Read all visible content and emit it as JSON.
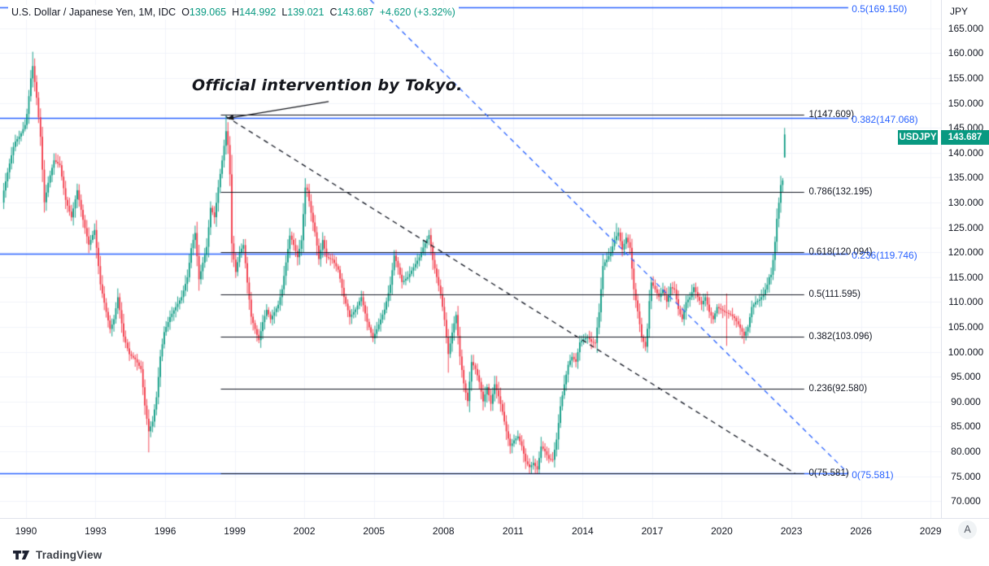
{
  "header": {
    "title": "U.S. Dollar / Japanese Yen, 1M, IDC",
    "o_label": "O",
    "o": "139.065",
    "h_label": "H",
    "h": "144.992",
    "l_label": "L",
    "l": "139.021",
    "c_label": "C",
    "c": "143.687",
    "change": "+4.620 (+3.32%)"
  },
  "annotation": {
    "text": "Official intervention by Tokyo."
  },
  "axis": {
    "currency": "JPY",
    "price_labels": [
      "165.000",
      "160.000",
      "155.000",
      "150.000",
      "145.000",
      "140.000",
      "135.000",
      "130.000",
      "125.000",
      "120.000",
      "115.000",
      "110.000",
      "105.000",
      "100.000",
      "95.000",
      "90.000",
      "85.000",
      "80.000",
      "75.000",
      "70.000"
    ],
    "year_labels": [
      "1990",
      "1993",
      "1996",
      "1999",
      "2002",
      "2005",
      "2008",
      "2011",
      "2014",
      "2017",
      "2020",
      "2023",
      "2026",
      "2029"
    ]
  },
  "badges": {
    "symbol": "USDJPY",
    "price": "143.687"
  },
  "footer": {
    "brand": "TradingView"
  },
  "corner": {
    "label": "A"
  },
  "colors": {
    "up": "#089981",
    "down": "#f23645",
    "blue": "#2962ff",
    "black_line": "#131722",
    "grid": "#f0f3fa",
    "axis_text": "#131722",
    "badge_bg": "#089981",
    "separator": "#e0e3eb"
  },
  "chart_data": {
    "type": "candlestick",
    "symbol": "USDJPY",
    "timeframe": "1M",
    "title": "U.S. Dollar / Japanese Yen, 1M, IDC",
    "grid": true,
    "xlim": [
      1988.88,
      2029.45
    ],
    "ylim": [
      66.6,
      170.7
    ],
    "x_ticks": [
      1990,
      1993,
      1996,
      1999,
      2002,
      2005,
      2008,
      2011,
      2014,
      2017,
      2020,
      2023,
      2026,
      2029
    ],
    "y_ticks": [
      165,
      160,
      155,
      150,
      145,
      140,
      135,
      130,
      125,
      120,
      115,
      110,
      105,
      100,
      95,
      90,
      85,
      80,
      75,
      70
    ],
    "last_bar": {
      "open": 139.065,
      "high": 144.992,
      "low": 139.021,
      "close": 143.687
    },
    "first_month": 1989.042,
    "months": 405,
    "price_path_anchors": [
      [
        1989.0,
        131.5
      ],
      [
        1989.25,
        137
      ],
      [
        1989.5,
        142
      ],
      [
        1989.75,
        143.5
      ],
      [
        1990.0,
        146
      ],
      [
        1990.21,
        155
      ],
      [
        1990.29,
        157.5
      ],
      [
        1990.46,
        151
      ],
      [
        1990.63,
        143
      ],
      [
        1990.79,
        130
      ],
      [
        1990.96,
        134
      ],
      [
        1991.21,
        138.5
      ],
      [
        1991.46,
        137.5
      ],
      [
        1991.71,
        130.5
      ],
      [
        1991.96,
        127
      ],
      [
        1992.21,
        132.5
      ],
      [
        1992.46,
        126.5
      ],
      [
        1992.71,
        121.5
      ],
      [
        1992.96,
        124.5
      ],
      [
        1993.21,
        113.5
      ],
      [
        1993.46,
        108
      ],
      [
        1993.63,
        104.5
      ],
      [
        1993.79,
        106.5
      ],
      [
        1993.96,
        111
      ],
      [
        1994.21,
        103
      ],
      [
        1994.46,
        99.5
      ],
      [
        1994.71,
        98.5
      ],
      [
        1994.96,
        96.5
      ],
      [
        1995.13,
        89
      ],
      [
        1995.29,
        84
      ],
      [
        1995.46,
        86
      ],
      [
        1995.63,
        91
      ],
      [
        1995.79,
        99
      ],
      [
        1995.96,
        104
      ],
      [
        1996.21,
        107
      ],
      [
        1996.46,
        109
      ],
      [
        1996.71,
        111
      ],
      [
        1996.96,
        115
      ],
      [
        1997.13,
        121
      ],
      [
        1997.29,
        124
      ],
      [
        1997.46,
        114.5
      ],
      [
        1997.63,
        118
      ],
      [
        1997.79,
        121
      ],
      [
        1997.96,
        129
      ],
      [
        1998.13,
        127
      ],
      [
        1998.29,
        133
      ],
      [
        1998.46,
        138.5
      ],
      [
        1998.63,
        144.5
      ],
      [
        1998.71,
        141.5
      ],
      [
        1998.79,
        136
      ],
      [
        1998.88,
        121
      ],
      [
        1999.04,
        116
      ],
      [
        1999.21,
        120
      ],
      [
        1999.38,
        121.5
      ],
      [
        1999.54,
        114
      ],
      [
        1999.71,
        107
      ],
      [
        1999.88,
        104.5
      ],
      [
        2000.04,
        102.3
      ],
      [
        2000.21,
        106
      ],
      [
        2000.38,
        108.5
      ],
      [
        2000.54,
        106.5
      ],
      [
        2000.71,
        108
      ],
      [
        2000.88,
        109.5
      ],
      [
        2001.04,
        112.5
      ],
      [
        2001.21,
        118
      ],
      [
        2001.38,
        123.5
      ],
      [
        2001.54,
        121.5
      ],
      [
        2001.71,
        119
      ],
      [
        2001.88,
        122.5
      ],
      [
        2002.04,
        133
      ],
      [
        2002.13,
        132.5
      ],
      [
        2002.29,
        128
      ],
      [
        2002.46,
        124
      ],
      [
        2002.63,
        118.5
      ],
      [
        2002.79,
        122.5
      ],
      [
        2002.96,
        119
      ],
      [
        2003.21,
        118.5
      ],
      [
        2003.46,
        116.5
      ],
      [
        2003.71,
        111
      ],
      [
        2003.96,
        107
      ],
      [
        2004.21,
        108.5
      ],
      [
        2004.46,
        111
      ],
      [
        2004.71,
        106
      ],
      [
        2004.96,
        102.7
      ],
      [
        2005.21,
        105.5
      ],
      [
        2005.46,
        108.5
      ],
      [
        2005.71,
        113.5
      ],
      [
        2005.88,
        119.5
      ],
      [
        2006.04,
        117
      ],
      [
        2006.21,
        114
      ],
      [
        2006.46,
        115
      ],
      [
        2006.71,
        117
      ],
      [
        2006.96,
        119
      ],
      [
        2007.13,
        121
      ],
      [
        2007.38,
        123.5
      ],
      [
        2007.54,
        118.5
      ],
      [
        2007.71,
        115
      ],
      [
        2007.88,
        111.5
      ],
      [
        2008.04,
        106.5
      ],
      [
        2008.21,
        99.5
      ],
      [
        2008.38,
        104
      ],
      [
        2008.54,
        107.5
      ],
      [
        2008.71,
        99
      ],
      [
        2008.88,
        93.5
      ],
      [
        2009.04,
        90
      ],
      [
        2009.21,
        98
      ],
      [
        2009.38,
        96.5
      ],
      [
        2009.54,
        94
      ],
      [
        2009.71,
        90
      ],
      [
        2009.88,
        93
      ],
      [
        2010.04,
        89.5
      ],
      [
        2010.21,
        93.5
      ],
      [
        2010.38,
        91
      ],
      [
        2010.54,
        88
      ],
      [
        2010.71,
        84
      ],
      [
        2010.88,
        81
      ],
      [
        2011.04,
        82.2
      ],
      [
        2011.21,
        83
      ],
      [
        2011.38,
        81
      ],
      [
        2011.54,
        78
      ],
      [
        2011.71,
        76.8
      ],
      [
        2011.88,
        77.7
      ],
      [
        2012.04,
        76.3
      ],
      [
        2012.21,
        81
      ],
      [
        2012.38,
        80
      ],
      [
        2012.54,
        78.5
      ],
      [
        2012.71,
        78.3
      ],
      [
        2012.88,
        82.5
      ],
      [
        2013.04,
        89
      ],
      [
        2013.21,
        93.5
      ],
      [
        2013.38,
        97.5
      ],
      [
        2013.54,
        99
      ],
      [
        2013.71,
        98
      ],
      [
        2013.88,
        102
      ],
      [
        2014.04,
        102.5
      ],
      [
        2014.21,
        103
      ],
      [
        2014.38,
        102
      ],
      [
        2014.54,
        101.7
      ],
      [
        2014.71,
        108
      ],
      [
        2014.88,
        117.5
      ],
      [
        2015.04,
        118.5
      ],
      [
        2015.21,
        120
      ],
      [
        2015.38,
        122.5
      ],
      [
        2015.54,
        124
      ],
      [
        2015.71,
        120.5
      ],
      [
        2015.88,
        123
      ],
      [
        2016.04,
        121
      ],
      [
        2016.21,
        112.5
      ],
      [
        2016.38,
        108
      ],
      [
        2016.54,
        103
      ],
      [
        2016.71,
        101
      ],
      [
        2016.79,
        104.5
      ],
      [
        2016.88,
        110.5
      ],
      [
        2016.96,
        114
      ],
      [
        2017.13,
        112.5
      ],
      [
        2017.29,
        111
      ],
      [
        2017.46,
        112.5
      ],
      [
        2017.63,
        110
      ],
      [
        2017.79,
        113
      ],
      [
        2017.96,
        112.5
      ],
      [
        2018.13,
        108.5
      ],
      [
        2018.29,
        106.5
      ],
      [
        2018.46,
        110
      ],
      [
        2018.63,
        111
      ],
      [
        2018.79,
        113
      ],
      [
        2018.96,
        111
      ],
      [
        2019.13,
        109.5
      ],
      [
        2019.29,
        111
      ],
      [
        2019.46,
        108
      ],
      [
        2019.63,
        106.5
      ],
      [
        2019.79,
        109
      ],
      [
        2019.96,
        108.5
      ],
      [
        2020.13,
        108
      ],
      [
        2020.21,
        107.8
      ],
      [
        2020.38,
        107.5
      ],
      [
        2020.54,
        106.8
      ],
      [
        2020.71,
        105.5
      ],
      [
        2020.88,
        104
      ],
      [
        2020.96,
        103.2
      ],
      [
        2021.13,
        105
      ],
      [
        2021.29,
        109
      ],
      [
        2021.46,
        110
      ],
      [
        2021.63,
        110.5
      ],
      [
        2021.79,
        111.5
      ],
      [
        2021.96,
        113.5
      ],
      [
        2022.04,
        115
      ],
      [
        2022.13,
        115.5
      ],
      [
        2022.21,
        118.5
      ],
      [
        2022.29,
        122
      ],
      [
        2022.38,
        127
      ],
      [
        2022.46,
        130
      ],
      [
        2022.54,
        133.5
      ],
      [
        2022.63,
        134.5
      ],
      [
        2022.71,
        143.687
      ]
    ],
    "bar_overrides": [
      {
        "t": 1990.29,
        "h": 160.3
      },
      {
        "t": 1995.29,
        "l": 79.8
      },
      {
        "t": 1998.63,
        "h": 147.55
      },
      {
        "t": 2008.21,
        "l": 95.8
      },
      {
        "t": 2011.79,
        "l": 75.581
      },
      {
        "t": 2015.45,
        "h": 125.86
      },
      {
        "t": 2020.21,
        "h": 111.7,
        "l": 101.2
      },
      {
        "t": 2022.71,
        "o": 139.065,
        "h": 144.992,
        "l": 139.021,
        "c": 143.687
      }
    ],
    "fib_black": {
      "x1": 1998.4,
      "x2": 2023.55,
      "label_x": 2023.75,
      "levels": [
        {
          "label": "1(147.609)",
          "p": 147.609
        },
        {
          "label": "0.786(132.195)",
          "p": 132.195
        },
        {
          "label": "0.618(120.094)",
          "p": 120.094
        },
        {
          "label": "0.5(111.595)",
          "p": 111.595
        },
        {
          "label": "0.382(103.096)",
          "p": 103.096
        },
        {
          "label": "0.236(92.580)",
          "p": 92.58
        },
        {
          "label": "0(75.581)",
          "p": 75.581
        }
      ]
    },
    "fib_blue": {
      "x1": 1988.88,
      "x2": 2025.45,
      "label_x": 2025.6,
      "levels": [
        {
          "label": "0.5(169.150)",
          "p": 169.15
        },
        {
          "label": "0.382(147.068)",
          "p": 147.068
        },
        {
          "label": "0.236(119.746)",
          "p": 119.746
        },
        {
          "label": "0(75.581)",
          "p": 75.581
        }
      ]
    },
    "trendlines": [
      {
        "style": "dashed",
        "color_key": "black_line",
        "from": [
          1998.62,
          147.3
        ],
        "to": [
          2023.15,
          75.581
        ]
      },
      {
        "style": "dashed",
        "color_key": "blue",
        "from": [
          2004.85,
          170.7
        ],
        "to": [
          2025.45,
          75.581
        ]
      }
    ],
    "arrow": {
      "from": [
        2003.05,
        150.3
      ],
      "to": [
        1998.66,
        146.9
      ]
    }
  }
}
